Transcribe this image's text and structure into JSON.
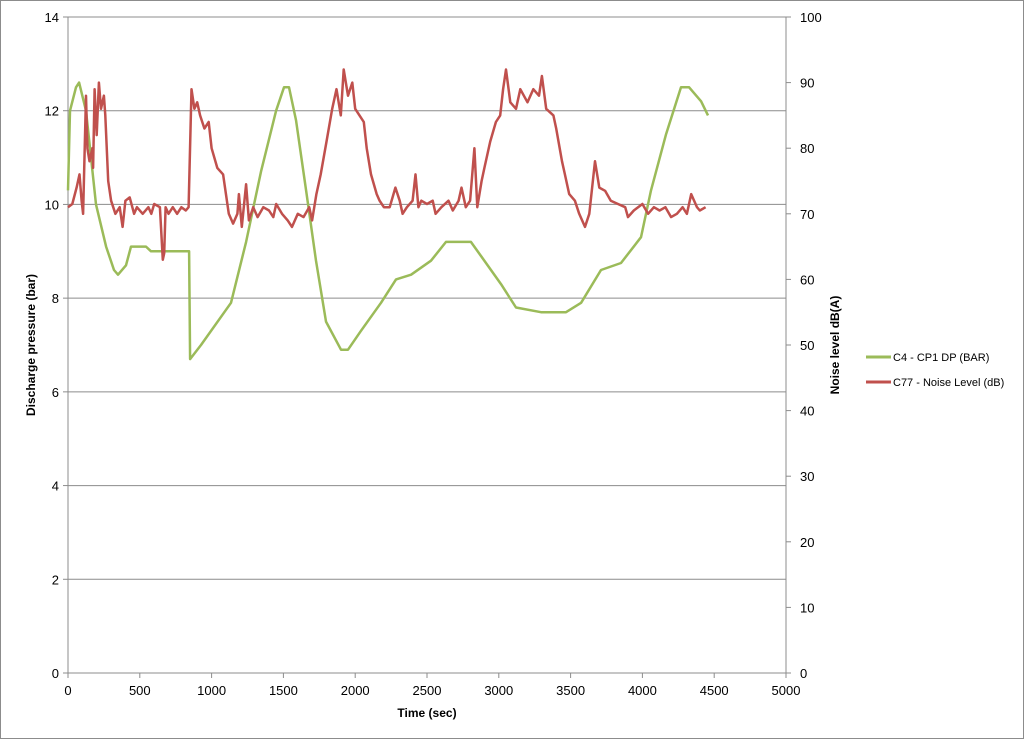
{
  "chart_data": {
    "type": "line",
    "title": "",
    "xlabel": "Time (sec)",
    "ylabel": "Discharge pressure (bar)",
    "y2label": "Noise level dB(A)",
    "xlim": [
      0,
      5000
    ],
    "ylim": [
      0,
      14
    ],
    "y2lim": [
      0,
      100
    ],
    "xticks": [
      "0",
      "500",
      "1000",
      "1500",
      "2000",
      "2500",
      "3000",
      "3500",
      "4000",
      "4500",
      "5000"
    ],
    "yticks": [
      "0",
      "2",
      "4",
      "6",
      "8",
      "10",
      "12",
      "14"
    ],
    "y2ticks": [
      "0",
      "10",
      "20",
      "30",
      "40",
      "50",
      "60",
      "70",
      "80",
      "90",
      "100"
    ],
    "grid": "horizontal",
    "legend_position": "right",
    "series": [
      {
        "name": "C4 - CP1 DP (BAR)",
        "axis": "left",
        "color": "#9bbb59",
        "x": [
          0,
          14,
          56,
          77,
          125,
          195,
          265,
          320,
          348,
          404,
          439,
          543,
          578,
          843,
          850,
          926,
          1135,
          1240,
          1344,
          1449,
          1504,
          1539,
          1588,
          1658,
          1727,
          1797,
          1901,
          1950,
          2040,
          2180,
          2284,
          2389,
          2528,
          2632,
          2806,
          2876,
          3015,
          3120,
          3294,
          3468,
          3573,
          3712,
          3851,
          3990,
          4060,
          4165,
          4269,
          4325,
          4409,
          4457
        ],
        "y": [
          10.3,
          12,
          12.5,
          12.6,
          12,
          10,
          9.1,
          8.6,
          8.5,
          8.7,
          9.1,
          9.1,
          9,
          9,
          6.7,
          7,
          7.9,
          9.2,
          10.7,
          12,
          12.5,
          12.5,
          11.8,
          10.3,
          8.8,
          7.5,
          6.9,
          6.9,
          7.3,
          7.9,
          8.4,
          8.5,
          8.8,
          9.2,
          9.2,
          8.9,
          8.3,
          7.8,
          7.7,
          7.7,
          7.9,
          8.6,
          8.75,
          9.3,
          10.3,
          11.5,
          12.5,
          12.5,
          12.2,
          11.9
        ]
      },
      {
        "name": "C77 - Noise Level (dB)",
        "axis": "right",
        "color": "#c0504d",
        "x": [
          0,
          30,
          60,
          80,
          95,
          105,
          125,
          135,
          150,
          170,
          175,
          185,
          200,
          215,
          230,
          250,
          260,
          280,
          300,
          330,
          360,
          380,
          400,
          430,
          460,
          480,
          520,
          560,
          580,
          600,
          640,
          660,
          670,
          680,
          700,
          730,
          760,
          790,
          820,
          840,
          860,
          880,
          900,
          920,
          950,
          980,
          1000,
          1040,
          1080,
          1120,
          1150,
          1180,
          1190,
          1210,
          1240,
          1260,
          1290,
          1320,
          1360,
          1400,
          1430,
          1450,
          1490,
          1530,
          1560,
          1600,
          1640,
          1680,
          1700,
          1730,
          1760,
          1800,
          1840,
          1870,
          1900,
          1920,
          1950,
          1980,
          2000,
          2030,
          2060,
          2080,
          2110,
          2150,
          2170,
          2200,
          2240,
          2280,
          2310,
          2330,
          2360,
          2400,
          2420,
          2440,
          2460,
          2500,
          2540,
          2560,
          2600,
          2650,
          2680,
          2720,
          2740,
          2770,
          2800,
          2830,
          2850,
          2880,
          2900,
          2940,
          2980,
          3010,
          3030,
          3050,
          3080,
          3120,
          3150,
          3200,
          3240,
          3280,
          3300,
          3330,
          3380,
          3400,
          3440,
          3460,
          3490,
          3530,
          3560,
          3600,
          3630,
          3670,
          3700,
          3740,
          3780,
          3830,
          3880,
          3900,
          3940,
          3970,
          4000,
          4040,
          4080,
          4120,
          4160,
          4200,
          4240,
          4280,
          4310,
          4340,
          4380,
          4400,
          4440
        ],
        "y": [
          71,
          71.5,
          74,
          76,
          72,
          70,
          88,
          80,
          78,
          80,
          77,
          89,
          82,
          90,
          86,
          88,
          85,
          75,
          72,
          70,
          71,
          68,
          72,
          72.5,
          70,
          71,
          70,
          71,
          70,
          71.5,
          71,
          63,
          64,
          71,
          70,
          71,
          70,
          71,
          70.5,
          71,
          89,
          86,
          87,
          85,
          83,
          84,
          80,
          77,
          76,
          70,
          68.5,
          70,
          73,
          68,
          74.5,
          69,
          71,
          69.5,
          71,
          70.5,
          69.5,
          71.5,
          70,
          69,
          68,
          70,
          69.5,
          71,
          69,
          73,
          76,
          81,
          86,
          89,
          85,
          92,
          88,
          90,
          86,
          85,
          84,
          80,
          76,
          73,
          72,
          71,
          71,
          74,
          72,
          70,
          71,
          72,
          76,
          71,
          72,
          71.5,
          72,
          70,
          71,
          72,
          70.5,
          72,
          74,
          71,
          72,
          80,
          71,
          75,
          77,
          81,
          84,
          85,
          89,
          92,
          87,
          86,
          89,
          87,
          89,
          88,
          91,
          86,
          85,
          83,
          78,
          76,
          73,
          72,
          70,
          68,
          70,
          78,
          74,
          73.5,
          72,
          71.5,
          71,
          69.5,
          70.5,
          71,
          71.5,
          70,
          71,
          70.5,
          71,
          69.5,
          70,
          71,
          70,
          73,
          71,
          70.5,
          71
        ]
      }
    ]
  }
}
